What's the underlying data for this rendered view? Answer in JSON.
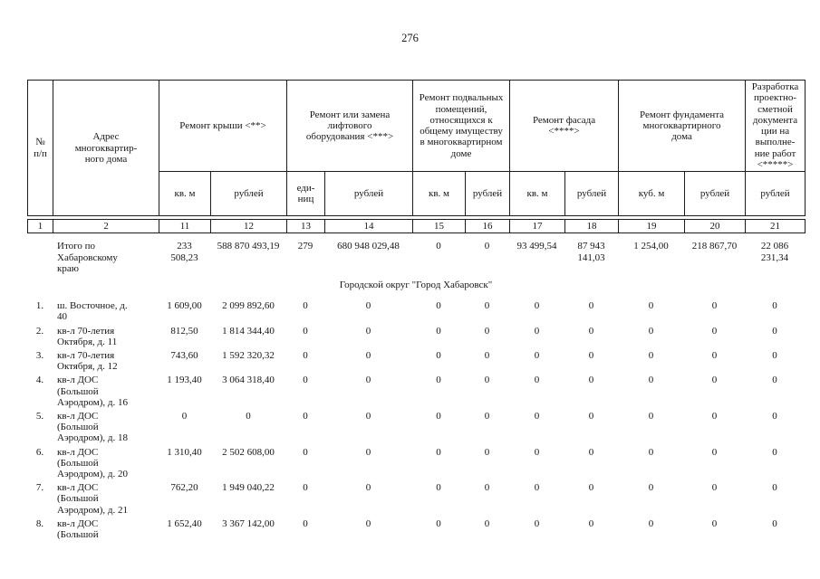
{
  "page": {
    "number": "276"
  },
  "table": {
    "header": {
      "col_num": "№\nп/п",
      "col_address": "Адрес\nмногоквартир-\nного дома",
      "groups": [
        {
          "label": "Ремонт крыши <**>",
          "sub": [
            "кв. м",
            "рублей"
          ]
        },
        {
          "label": "Ремонт или замена\nлифтового\nоборудования <***>",
          "sub": [
            "еди-\nниц",
            "рублей"
          ]
        },
        {
          "label": "Ремонт подвальных\nпомещений,\nотносящихся к\nобщему имуществу\nв многоквартирном\nдоме",
          "sub": [
            "кв. м",
            "рублей"
          ]
        },
        {
          "label": "Ремонт фасада\n<****>",
          "sub": [
            "кв. м",
            "рублей"
          ]
        },
        {
          "label": "Ремонт фундамента\nмногоквартирного\nдома",
          "sub": [
            "куб. м",
            "рублей"
          ]
        },
        {
          "label": "Разработка\nпроектно-\nсметной\nдокумента\nции на\nвыполне-\nние работ\n<*****>",
          "sub": [
            "рублей"
          ]
        }
      ],
      "column_numbers": [
        "1",
        "2",
        "11",
        "12",
        "13",
        "14",
        "15",
        "16",
        "17",
        "18",
        "19",
        "20",
        "21"
      ]
    },
    "totals_row": {
      "num": "",
      "address": "Итого по\nХабаровскому\nкраю",
      "values": [
        "233\n508,23",
        "588 870 493,19",
        "279",
        "680 948 029,48",
        "0",
        "0",
        "93 499,54",
        "87 943\n141,03",
        "1 254,00",
        "218 867,70",
        "22 086\n231,34"
      ]
    },
    "section_header": "Городской округ \"Город Хабаровск\"",
    "rows": [
      {
        "num": "1.",
        "address": "ш. Восточное, д.\n40",
        "values": [
          "1 609,00",
          "2 099 892,60",
          "0",
          "0",
          "0",
          "0",
          "0",
          "0",
          "0",
          "0",
          "0"
        ]
      },
      {
        "num": "2.",
        "address": "кв-л 70-летия\nОктября, д. 11",
        "values": [
          "812,50",
          "1 814 344,40",
          "0",
          "0",
          "0",
          "0",
          "0",
          "0",
          "0",
          "0",
          "0"
        ]
      },
      {
        "num": "3.",
        "address": "кв-л 70-летия\nОктября, д. 12",
        "values": [
          "743,60",
          "1 592 320,32",
          "0",
          "0",
          "0",
          "0",
          "0",
          "0",
          "0",
          "0",
          "0"
        ]
      },
      {
        "num": "4.",
        "address": "кв-л ДОС\n(Большой\nАэродром), д. 16",
        "values": [
          "1 193,40",
          "3 064 318,40",
          "0",
          "0",
          "0",
          "0",
          "0",
          "0",
          "0",
          "0",
          "0"
        ]
      },
      {
        "num": "5.",
        "address": "кв-л ДОС\n(Большой\nАэродром), д. 18",
        "values": [
          "0",
          "0",
          "0",
          "0",
          "0",
          "0",
          "0",
          "0",
          "0",
          "0",
          "0"
        ]
      },
      {
        "num": "6.",
        "address": "кв-л ДОС\n(Большой\nАэродром), д. 20",
        "values": [
          "1 310,40",
          "2 502 608,00",
          "0",
          "0",
          "0",
          "0",
          "0",
          "0",
          "0",
          "0",
          "0"
        ]
      },
      {
        "num": "7.",
        "address": "кв-л ДОС\n(Большой\nАэродром), д. 21",
        "values": [
          "762,20",
          "1 949 040,22",
          "0",
          "0",
          "0",
          "0",
          "0",
          "0",
          "0",
          "0",
          "0"
        ]
      },
      {
        "num": "8.",
        "address": "кв-л ДОС\n(Большой",
        "values": [
          "1 652,40",
          "3 367 142,00",
          "0",
          "0",
          "0",
          "0",
          "0",
          "0",
          "0",
          "0",
          "0"
        ]
      }
    ]
  }
}
